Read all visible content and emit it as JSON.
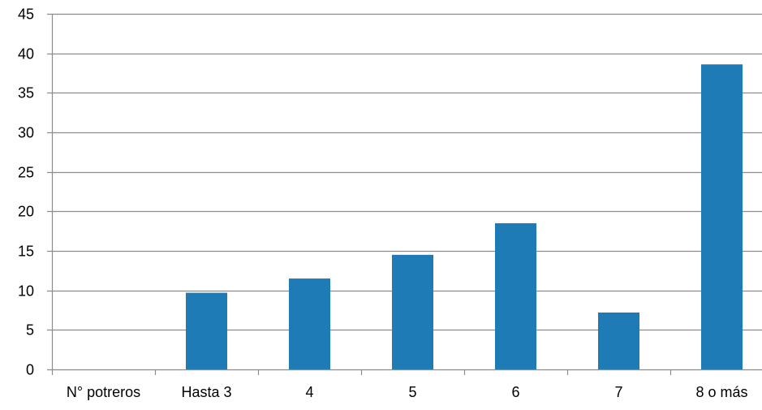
{
  "chart_data": {
    "type": "bar",
    "categories": [
      "N° potreros",
      "Hasta 3",
      "4",
      "5",
      "6",
      "7",
      "8 o más"
    ],
    "values": [
      null,
      9.7,
      11.5,
      14.5,
      18.5,
      7.2,
      38.6
    ],
    "ylim": [
      0,
      45
    ],
    "yticks": [
      0,
      5,
      10,
      15,
      20,
      25,
      30,
      35,
      40,
      45
    ],
    "grid": true,
    "bar_color": "#1f7bb6",
    "grid_color": "#8c8c8c",
    "axis_color": "#8c8c8c"
  }
}
